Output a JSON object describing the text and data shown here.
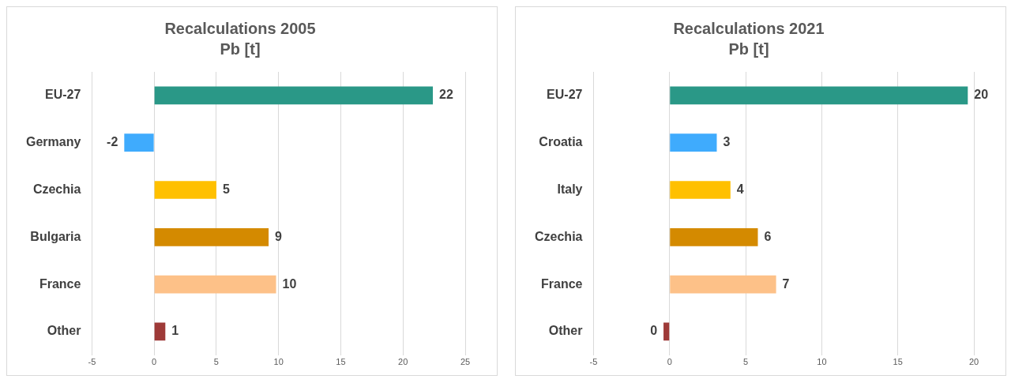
{
  "chart_data": [
    {
      "type": "bar",
      "title": "Recalculations 2005",
      "subtitle": "Pb [t]",
      "orientation": "horizontal",
      "categories": [
        "EU-27",
        "Germany",
        "Czechia",
        "Bulgaria",
        "France",
        "Other"
      ],
      "values": [
        22.4,
        -2.4,
        5.0,
        9.2,
        9.8,
        0.9
      ],
      "colors": [
        "#2a9887",
        "#3fabfd",
        "#ffc000",
        "#d48a00",
        "#fdc188",
        "#9e3a38"
      ],
      "value_labels": [
        "22",
        "-2",
        "5",
        "9",
        "10",
        "1"
      ],
      "xlim": [
        -5,
        25
      ],
      "xticks": [
        -5,
        0,
        5,
        10,
        15,
        20,
        25
      ],
      "grid": "x"
    },
    {
      "type": "bar",
      "title": "Recalculations 2021",
      "subtitle": "Pb [t]",
      "orientation": "horizontal",
      "categories": [
        "EU-27",
        "Croatia",
        "Italy",
        "Czechia",
        "France",
        "Other"
      ],
      "values": [
        19.6,
        3.1,
        4.0,
        5.8,
        7.0,
        -0.4
      ],
      "colors": [
        "#2a9887",
        "#3fabfd",
        "#ffc000",
        "#d48a00",
        "#fdc188",
        "#9e3a38"
      ],
      "value_labels": [
        "20",
        "3",
        "4",
        "6",
        "7",
        "0"
      ],
      "xlim": [
        -5,
        20
      ],
      "xticks": [
        -5,
        0,
        5,
        10,
        15,
        20
      ],
      "grid": "x"
    }
  ]
}
